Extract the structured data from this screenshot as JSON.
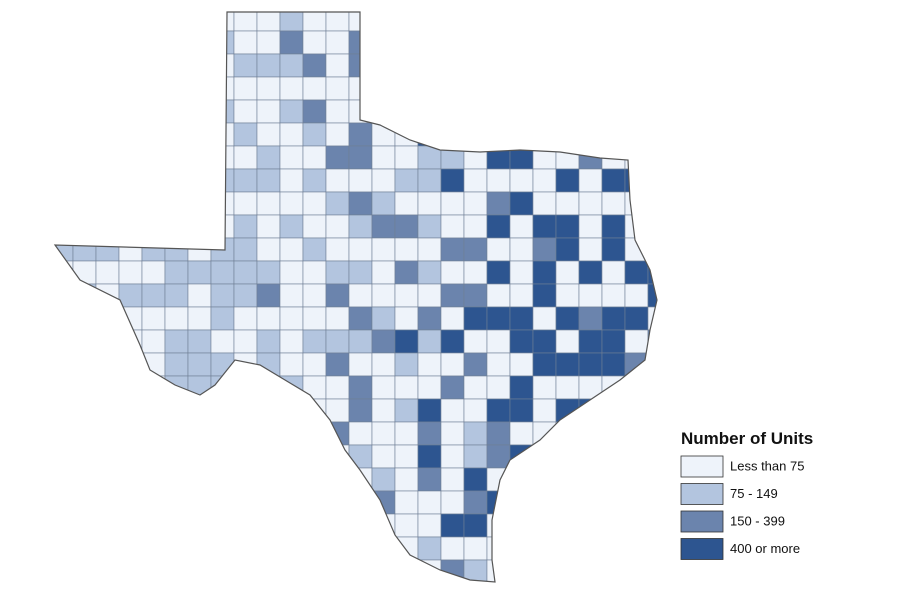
{
  "legend": {
    "title": "Number of Units",
    "items": [
      {
        "label": "Less than 75",
        "color": "#eef3fa"
      },
      {
        "label": "75 - 149",
        "color": "#b3c5df"
      },
      {
        "label": "150 - 399",
        "color": "#6b84ad"
      },
      {
        "label": "400 or more",
        "color": "#2d5590"
      }
    ]
  }
}
